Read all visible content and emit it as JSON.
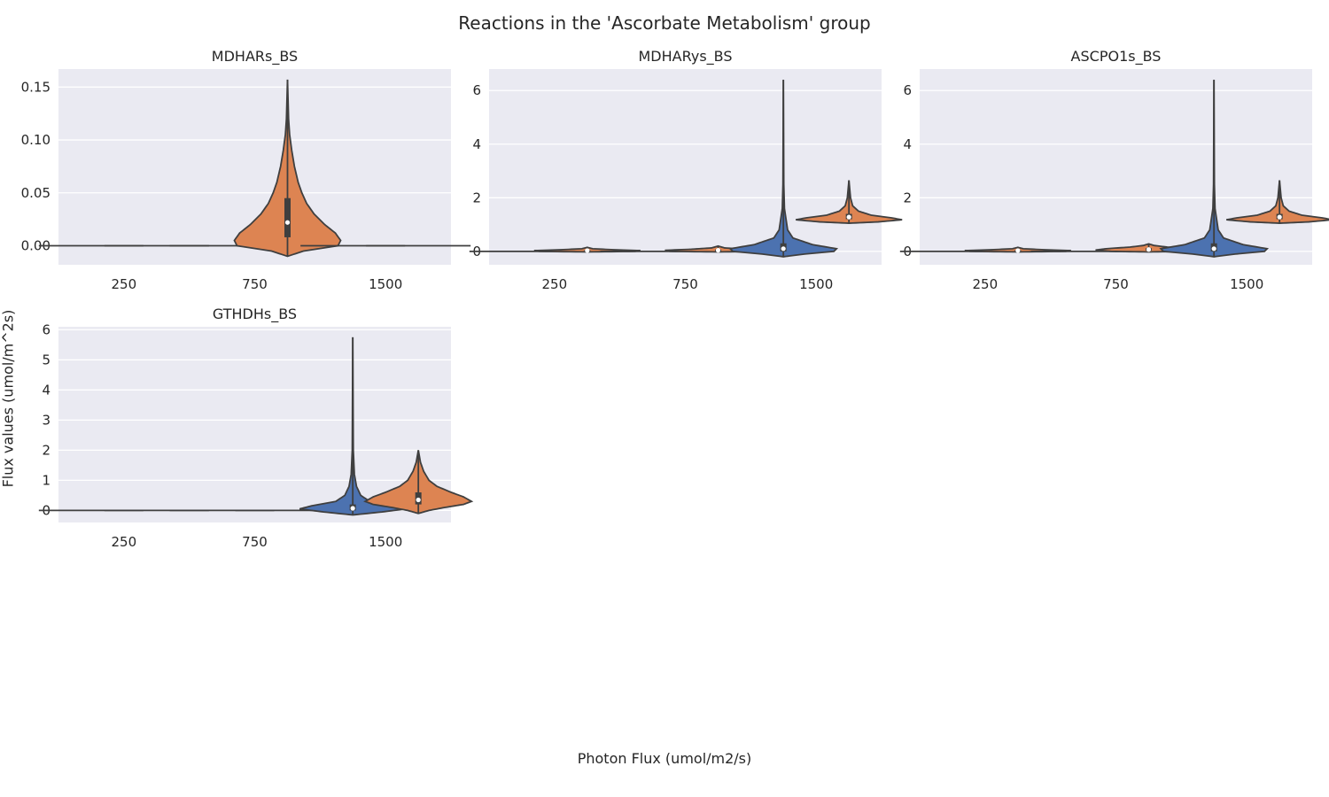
{
  "figure": {
    "title": "Reactions in the 'Ascorbate Metabolism' group",
    "xlabel": "Photon Flux (umol/m2/s)",
    "ylabel": "Flux values (umol/m^2s)"
  },
  "colors": {
    "background": "#eaeaf2",
    "grid": "#ffffff",
    "series_a": "#4c72b0",
    "series_b": "#dd8452",
    "outline": "#3f3f3f",
    "text": "#262626"
  },
  "chart_data": [
    {
      "type": "violin",
      "title": "MDHARs_BS",
      "categories": [
        "250",
        "750",
        "1500"
      ],
      "yticks": [
        "0.00",
        "0.05",
        "0.10",
        "0.15"
      ],
      "ytick_values": [
        0,
        0.05,
        0.1,
        0.15
      ],
      "ylim": [
        -0.018,
        0.167
      ],
      "grid": true,
      "violins": [
        {
          "category_index": 0,
          "series": 0,
          "shape": "flat",
          "value": 0
        },
        {
          "category_index": 0,
          "series": 1,
          "shape": "flat",
          "value": 0
        },
        {
          "category_index": 1,
          "series": 0,
          "shape": "flat",
          "value": 0
        },
        {
          "category_index": 1,
          "series": 1,
          "shape": "violin",
          "min": -0.01,
          "max": 0.157,
          "median": 0.022,
          "q1": 0.008,
          "q3": 0.045,
          "profile": [
            [
              -0.01,
              0.0
            ],
            [
              -0.005,
              0.3
            ],
            [
              0.0,
              0.95
            ],
            [
              0.005,
              1.0
            ],
            [
              0.012,
              0.9
            ],
            [
              0.02,
              0.7
            ],
            [
              0.03,
              0.5
            ],
            [
              0.04,
              0.36
            ],
            [
              0.05,
              0.27
            ],
            [
              0.06,
              0.2
            ],
            [
              0.075,
              0.13
            ],
            [
              0.09,
              0.08
            ],
            [
              0.105,
              0.04
            ],
            [
              0.12,
              0.02
            ],
            [
              0.157,
              0.0
            ]
          ]
        },
        {
          "category_index": 2,
          "series": 0,
          "shape": "flat",
          "value": 0
        },
        {
          "category_index": 2,
          "series": 1,
          "shape": "flat",
          "value": 0
        }
      ]
    },
    {
      "type": "violin",
      "title": "MDHARys_BS",
      "categories": [
        "250",
        "750",
        "1500"
      ],
      "yticks": [
        "0",
        "2",
        "4",
        "6"
      ],
      "ytick_values": [
        0,
        2,
        4,
        6
      ],
      "ylim": [
        -0.5,
        6.8
      ],
      "grid": true,
      "violins": [
        {
          "category_index": 0,
          "series": 0,
          "shape": "flat",
          "value": 0
        },
        {
          "category_index": 0,
          "series": 1,
          "shape": "violin",
          "min": -0.02,
          "max": 0.15,
          "median": 0.03,
          "q1": 0.01,
          "q3": 0.05,
          "profile": [
            [
              -0.02,
              0.0
            ],
            [
              0.0,
              0.9
            ],
            [
              0.03,
              1.0
            ],
            [
              0.06,
              0.5
            ],
            [
              0.1,
              0.1
            ],
            [
              0.15,
              0.0
            ]
          ]
        },
        {
          "category_index": 1,
          "series": 0,
          "shape": "flat",
          "value": 0
        },
        {
          "category_index": 1,
          "series": 1,
          "shape": "violin",
          "min": -0.02,
          "max": 0.2,
          "median": 0.04,
          "q1": 0.01,
          "q3": 0.07,
          "profile": [
            [
              -0.02,
              0.0
            ],
            [
              0.0,
              0.9
            ],
            [
              0.04,
              1.0
            ],
            [
              0.08,
              0.5
            ],
            [
              0.13,
              0.12
            ],
            [
              0.2,
              0.0
            ]
          ]
        },
        {
          "category_index": 2,
          "series": 0,
          "shape": "violin",
          "min": -0.2,
          "max": 6.4,
          "median": 0.1,
          "q1": 0.0,
          "q3": 0.3,
          "profile": [
            [
              -0.2,
              0.0
            ],
            [
              -0.1,
              0.4
            ],
            [
              0.0,
              0.95
            ],
            [
              0.1,
              1.0
            ],
            [
              0.25,
              0.55
            ],
            [
              0.5,
              0.18
            ],
            [
              0.8,
              0.08
            ],
            [
              1.2,
              0.05
            ],
            [
              1.6,
              0.02
            ],
            [
              2.5,
              0.008
            ],
            [
              6.4,
              0.0
            ]
          ]
        },
        {
          "category_index": 2,
          "series": 1,
          "shape": "violin",
          "min": 1.05,
          "max": 2.65,
          "median": 1.28,
          "q1": 1.2,
          "q3": 1.4,
          "profile": [
            [
              1.05,
              0.0
            ],
            [
              1.1,
              0.55
            ],
            [
              1.18,
              1.0
            ],
            [
              1.25,
              0.8
            ],
            [
              1.35,
              0.42
            ],
            [
              1.5,
              0.18
            ],
            [
              1.7,
              0.07
            ],
            [
              2.0,
              0.03
            ],
            [
              2.65,
              0.0
            ]
          ]
        }
      ]
    },
    {
      "type": "violin",
      "title": "ASCPO1s_BS",
      "categories": [
        "250",
        "750",
        "1500"
      ],
      "yticks": [
        "0",
        "2",
        "4",
        "6"
      ],
      "ytick_values": [
        0,
        2,
        4,
        6
      ],
      "ylim": [
        -0.5,
        6.8
      ],
      "grid": true,
      "violins": [
        {
          "category_index": 0,
          "series": 0,
          "shape": "flat",
          "value": 0
        },
        {
          "category_index": 0,
          "series": 1,
          "shape": "violin",
          "min": -0.02,
          "max": 0.15,
          "median": 0.03,
          "q1": 0.01,
          "q3": 0.05,
          "profile": [
            [
              -0.02,
              0.0
            ],
            [
              0.0,
              0.9
            ],
            [
              0.03,
              1.0
            ],
            [
              0.06,
              0.5
            ],
            [
              0.1,
              0.1
            ],
            [
              0.15,
              0.0
            ]
          ]
        },
        {
          "category_index": 1,
          "series": 0,
          "shape": "flat",
          "value": 0
        },
        {
          "category_index": 1,
          "series": 1,
          "shape": "violin",
          "min": -0.02,
          "max": 0.28,
          "median": 0.07,
          "q1": 0.03,
          "q3": 0.12,
          "profile": [
            [
              -0.02,
              0.0
            ],
            [
              0.0,
              0.7
            ],
            [
              0.05,
              1.0
            ],
            [
              0.1,
              0.8
            ],
            [
              0.16,
              0.35
            ],
            [
              0.22,
              0.1
            ],
            [
              0.28,
              0.0
            ]
          ]
        },
        {
          "category_index": 2,
          "series": 0,
          "shape": "violin",
          "min": -0.2,
          "max": 6.4,
          "median": 0.1,
          "q1": 0.0,
          "q3": 0.3,
          "profile": [
            [
              -0.2,
              0.0
            ],
            [
              -0.1,
              0.4
            ],
            [
              0.0,
              0.95
            ],
            [
              0.1,
              1.0
            ],
            [
              0.25,
              0.55
            ],
            [
              0.5,
              0.18
            ],
            [
              0.8,
              0.08
            ],
            [
              1.2,
              0.05
            ],
            [
              1.6,
              0.02
            ],
            [
              2.5,
              0.008
            ],
            [
              6.4,
              0.0
            ]
          ]
        },
        {
          "category_index": 2,
          "series": 1,
          "shape": "violin",
          "min": 1.05,
          "max": 2.65,
          "median": 1.28,
          "q1": 1.2,
          "q3": 1.4,
          "profile": [
            [
              1.05,
              0.0
            ],
            [
              1.1,
              0.55
            ],
            [
              1.18,
              1.0
            ],
            [
              1.25,
              0.8
            ],
            [
              1.35,
              0.42
            ],
            [
              1.5,
              0.18
            ],
            [
              1.7,
              0.07
            ],
            [
              2.0,
              0.03
            ],
            [
              2.65,
              0.0
            ]
          ]
        }
      ]
    },
    {
      "type": "violin",
      "title": "GTHDHs_BS",
      "categories": [
        "250",
        "750",
        "1500"
      ],
      "yticks": [
        "0",
        "1",
        "2",
        "3",
        "4",
        "5",
        "6"
      ],
      "ytick_values": [
        0,
        1,
        2,
        3,
        4,
        5,
        6
      ],
      "ylim": [
        -0.4,
        6.1
      ],
      "grid": true,
      "violins": [
        {
          "category_index": 0,
          "series": 0,
          "shape": "flat",
          "value": 0
        },
        {
          "category_index": 0,
          "series": 1,
          "shape": "flat",
          "value": 0
        },
        {
          "category_index": 1,
          "series": 0,
          "shape": "flat",
          "value": 0
        },
        {
          "category_index": 1,
          "series": 1,
          "shape": "flat",
          "value": 0
        },
        {
          "category_index": 2,
          "series": 0,
          "shape": "violin",
          "min": -0.15,
          "max": 5.75,
          "median": 0.07,
          "q1": 0.0,
          "q3": 0.2,
          "profile": [
            [
              -0.15,
              0.0
            ],
            [
              -0.05,
              0.55
            ],
            [
              0.05,
              1.0
            ],
            [
              0.15,
              0.78
            ],
            [
              0.3,
              0.32
            ],
            [
              0.5,
              0.15
            ],
            [
              0.8,
              0.07
            ],
            [
              1.2,
              0.03
            ],
            [
              2.0,
              0.01
            ],
            [
              5.75,
              0.0
            ]
          ]
        },
        {
          "category_index": 2,
          "series": 1,
          "shape": "violin",
          "min": -0.1,
          "max": 2.0,
          "median": 0.35,
          "q1": 0.2,
          "q3": 0.6,
          "profile": [
            [
              -0.1,
              0.0
            ],
            [
              0.0,
              0.2
            ],
            [
              0.1,
              0.5
            ],
            [
              0.2,
              0.85
            ],
            [
              0.3,
              1.0
            ],
            [
              0.45,
              0.85
            ],
            [
              0.6,
              0.62
            ],
            [
              0.8,
              0.35
            ],
            [
              1.0,
              0.2
            ],
            [
              1.3,
              0.1
            ],
            [
              1.6,
              0.04
            ],
            [
              2.0,
              0.0
            ]
          ]
        }
      ]
    }
  ]
}
